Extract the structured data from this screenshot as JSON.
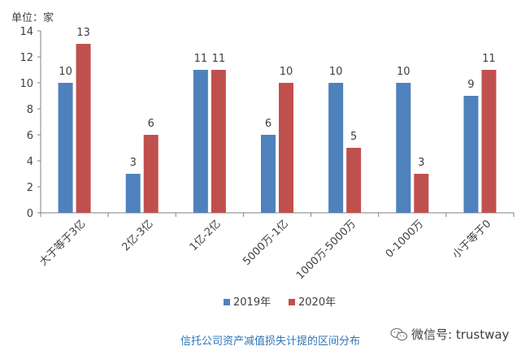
{
  "chart_data": {
    "type": "bar",
    "unit_label": "单位：家",
    "categories": [
      "大于等于3亿",
      "2亿-3亿",
      "1亿-2亿",
      "5000万-1亿",
      "1000万-5000万",
      "0-1000万",
      "小于等于0"
    ],
    "series": [
      {
        "name": "2019年",
        "values": [
          10,
          3,
          11,
          6,
          10,
          10,
          9
        ],
        "color": "#4f81bd"
      },
      {
        "name": "2020年",
        "values": [
          13,
          6,
          11,
          10,
          5,
          3,
          11
        ],
        "color": "#c0504d"
      }
    ],
    "ylim": [
      0,
      14
    ],
    "yticks": [
      0,
      2,
      4,
      6,
      8,
      10,
      12,
      14
    ],
    "legend_position": "bottom-center",
    "grid": false
  },
  "caption": "信托公司资产减值损失计提的区间分布",
  "watermark": "微信号: trustway"
}
